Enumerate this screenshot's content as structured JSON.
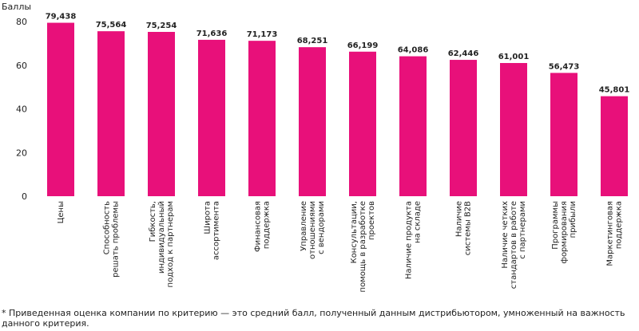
{
  "chart_data": {
    "type": "bar",
    "ylabel": "Баллы",
    "ylim": [
      0,
      80
    ],
    "yticks": [
      0,
      20,
      40,
      60,
      80
    ],
    "bar_color": "#e8107a",
    "categories": [
      [
        "Цены"
      ],
      [
        "Способность",
        "решать проблемы"
      ],
      [
        "Гибкость,",
        "индивидуальный",
        "подход к партнерам"
      ],
      [
        "Широта",
        "ассортимента"
      ],
      [
        "Финансовая",
        "поддержка"
      ],
      [
        "Управление",
        "отношениями",
        "с вендорами"
      ],
      [
        "Консультации,",
        "помощь в разработке",
        "проектов"
      ],
      [
        "Наличие продукта",
        "на складе"
      ],
      [
        "Наличие",
        "системы B2B"
      ],
      [
        "Наличие четких",
        "стандартов в работе",
        "с партнерами"
      ],
      [
        "Программы",
        "формирования",
        "прибыли"
      ],
      [
        "Маркетинговая",
        "поддержка"
      ]
    ],
    "values": [
      79.438,
      75.564,
      75.254,
      71.636,
      71.173,
      68.251,
      66.199,
      64.086,
      62.446,
      61.001,
      56.473,
      45.801
    ],
    "value_labels": [
      "79,438",
      "75,564",
      "75,254",
      "71,636",
      "71,173",
      "68,251",
      "66,199",
      "64,086",
      "62,446",
      "61,001",
      "56,473",
      "45,801"
    ]
  },
  "footnote": "* Приведенная оценка компании по критерию — это средний балл, полученный данным дистрибьютором, умноженный на важность данного критерия."
}
